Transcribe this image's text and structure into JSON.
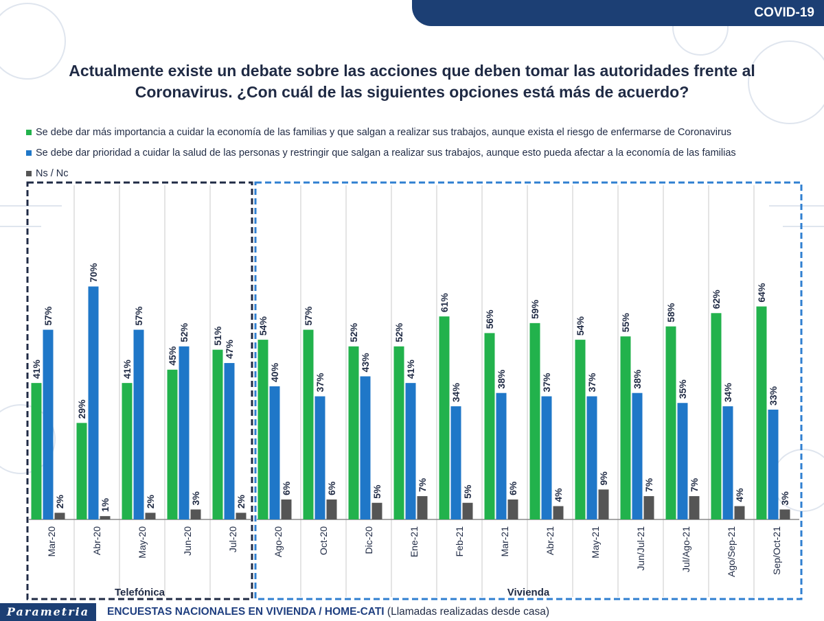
{
  "header": {
    "tag": "COVID-19"
  },
  "colors": {
    "green": "#22b24c",
    "blue": "#1f77c8",
    "gray": "#555555",
    "navy": "#1c3f74",
    "box_left": "#1f2a44",
    "box_right": "#2f7fd0"
  },
  "chart_data": {
    "type": "bar",
    "title_line1": "Actualmente existe un debate sobre las acciones que deben tomar las autoridades frente al",
    "title_line2": "Coronavirus. ¿Con cuál de las siguientes opciones está más de acuerdo?",
    "ylim": [
      0,
      80
    ],
    "value_suffix": "%",
    "categories": [
      "Mar-20",
      "Abr-20",
      "May-20",
      "Jun-20",
      "Jul-20",
      "Ago-20",
      "Oct-20",
      "Dic-20",
      "Ene-21",
      "Feb-21",
      "Mar-21",
      "Abr-21",
      "May-21",
      "Jun/Jul-21",
      "Jul/Ago-21",
      "Ago/Sep-21",
      "Sep/Oct-21"
    ],
    "series": [
      {
        "name": "Se debe dar más importancia a cuidar la economía de las familias y que salgan a realizar sus trabajos, aunque exista el riesgo de enfermarse de Coronavirus",
        "color": "#22b24c",
        "values": [
          41,
          29,
          41,
          45,
          51,
          54,
          57,
          52,
          52,
          61,
          56,
          59,
          54,
          55,
          58,
          62,
          64
        ]
      },
      {
        "name": "Se debe dar prioridad a cuidar la salud de las personas y restringir que salgan a realizar sus trabajos, aunque esto pueda afectar a la economía de las familias",
        "color": "#1f77c8",
        "values": [
          57,
          70,
          57,
          52,
          47,
          40,
          37,
          43,
          41,
          34,
          38,
          37,
          37,
          38,
          35,
          34,
          33
        ]
      },
      {
        "name": "Ns / Nc",
        "color": "#555555",
        "values": [
          2,
          1,
          2,
          3,
          2,
          6,
          6,
          5,
          7,
          5,
          6,
          4,
          9,
          7,
          7,
          4,
          3
        ]
      }
    ],
    "groups": [
      {
        "label": "Telefónica",
        "start": 0,
        "end": 4
      },
      {
        "label": "Vivienda",
        "start": 5,
        "end": 16
      }
    ]
  },
  "footer": {
    "logo": "Parametria",
    "bold_text": "ENCUESTAS NACIONALES EN VIVIENDA / HOME-CATI",
    "normal_text": " (Llamadas realizadas desde casa)"
  }
}
